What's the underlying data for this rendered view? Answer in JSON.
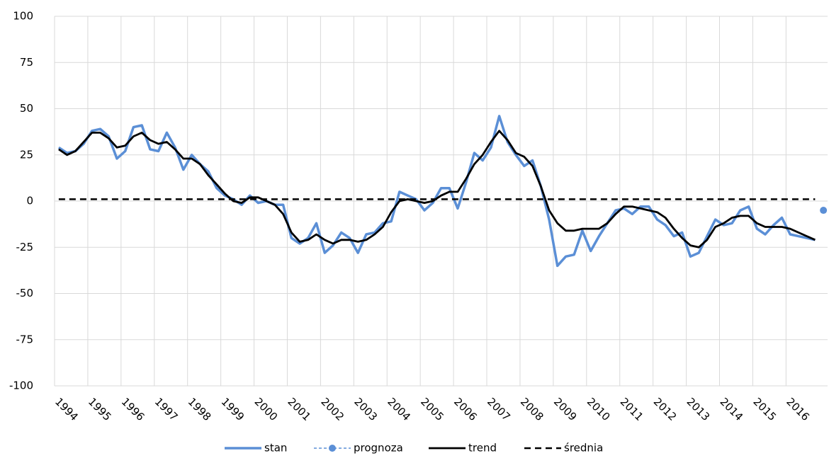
{
  "chart_data": {
    "type": "line",
    "categories": [
      "1994",
      null,
      null,
      null,
      "1995",
      null,
      null,
      null,
      "1996",
      null,
      null,
      null,
      "1997",
      null,
      null,
      null,
      "1998",
      null,
      null,
      null,
      "1999",
      null,
      null,
      null,
      "2000",
      null,
      null,
      null,
      "2001",
      null,
      null,
      null,
      "2002",
      null,
      null,
      null,
      "2003",
      null,
      null,
      null,
      "2004",
      null,
      null,
      null,
      "2005",
      null,
      null,
      null,
      "2006",
      null,
      null,
      null,
      "2007",
      null,
      null,
      null,
      "2008",
      null,
      null,
      null,
      "2009",
      null,
      null,
      null,
      "2010",
      null,
      null,
      null,
      "2011",
      null,
      null,
      null,
      "2012",
      null,
      null,
      null,
      "2013",
      null,
      null,
      null,
      "2014",
      null,
      null,
      null,
      "2015",
      null,
      null,
      null,
      "2016",
      null,
      null,
      null,
      null
    ],
    "series": [
      {
        "name": "stan",
        "color": "#5b8fd6",
        "style": "solid",
        "values": [
          29,
          26,
          27,
          31,
          38,
          39,
          35,
          23,
          27,
          40,
          41,
          28,
          27,
          37,
          29,
          17,
          25,
          20,
          16,
          7,
          3,
          1,
          -2,
          3,
          -1,
          0,
          -2,
          -2,
          -20,
          -23,
          -20,
          -12,
          -28,
          -24,
          -17,
          -20,
          -28,
          -18,
          -17,
          -12,
          -11,
          5,
          3,
          1,
          -5,
          -1,
          7,
          7,
          -4,
          10,
          26,
          22,
          29,
          46,
          32,
          25,
          19,
          22,
          8,
          -10,
          -35,
          -30,
          -29,
          -16,
          -27,
          -19,
          -12,
          -5,
          -4,
          -7,
          -3,
          -3,
          -10,
          -13,
          -19,
          -17,
          -30,
          -28,
          -19,
          -10,
          -13,
          -12,
          -5,
          -3,
          -15,
          -18,
          -13,
          -9,
          -18,
          -19,
          -20,
          -21,
          null
        ]
      },
      {
        "name": "prognoza",
        "color": "#5b8fd6",
        "style": "dashed-marker",
        "values": [
          null,
          null,
          null,
          null,
          null,
          null,
          null,
          null,
          null,
          null,
          null,
          null,
          null,
          null,
          null,
          null,
          null,
          null,
          null,
          null,
          null,
          null,
          null,
          null,
          null,
          null,
          null,
          null,
          null,
          null,
          null,
          null,
          null,
          null,
          null,
          null,
          null,
          null,
          null,
          null,
          null,
          null,
          null,
          null,
          null,
          null,
          null,
          null,
          null,
          null,
          null,
          null,
          null,
          null,
          null,
          null,
          null,
          null,
          null,
          null,
          null,
          null,
          null,
          null,
          null,
          null,
          null,
          null,
          null,
          null,
          null,
          null,
          null,
          null,
          null,
          null,
          null,
          null,
          null,
          null,
          null,
          null,
          null,
          null,
          null,
          null,
          null,
          null,
          null,
          null,
          null,
          null,
          -5
        ]
      },
      {
        "name": "trend",
        "color": "#000000",
        "style": "solid",
        "values": [
          28,
          25,
          27,
          32,
          37,
          37,
          34,
          29,
          30,
          35,
          37,
          33,
          31,
          32,
          28,
          23,
          23,
          20,
          14,
          9,
          4,
          0,
          -1,
          2,
          2,
          0,
          -2,
          -7,
          -17,
          -22,
          -21,
          -18,
          -21,
          -23,
          -21,
          -21,
          -22,
          -21,
          -18,
          -14,
          -6,
          0,
          1,
          0,
          -1,
          0,
          3,
          5,
          5,
          12,
          20,
          25,
          32,
          38,
          33,
          26,
          24,
          19,
          8,
          -5,
          -12,
          -16,
          -16,
          -15,
          -15,
          -15,
          -12,
          -7,
          -3,
          -3,
          -4,
          -5,
          -6,
          -9,
          -15,
          -20,
          -24,
          -25,
          -21,
          -14,
          -12,
          -9,
          -8,
          -8,
          -12,
          -14,
          -14,
          -14,
          -15,
          -17,
          -19,
          -21,
          null
        ]
      },
      {
        "name": "średnia",
        "color": "#000000",
        "style": "dashed",
        "values": [
          1,
          1,
          1,
          1,
          1,
          1,
          1,
          1,
          1,
          1,
          1,
          1,
          1,
          1,
          1,
          1,
          1,
          1,
          1,
          1,
          1,
          1,
          1,
          1,
          1,
          1,
          1,
          1,
          1,
          1,
          1,
          1,
          1,
          1,
          1,
          1,
          1,
          1,
          1,
          1,
          1,
          1,
          1,
          1,
          1,
          1,
          1,
          1,
          1,
          1,
          1,
          1,
          1,
          1,
          1,
          1,
          1,
          1,
          1,
          1,
          1,
          1,
          1,
          1,
          1,
          1,
          1,
          1,
          1,
          1,
          1,
          1,
          1,
          1,
          1,
          1,
          1,
          1,
          1,
          1,
          1,
          1,
          1,
          1,
          1,
          1,
          1,
          1,
          1,
          1,
          1,
          1,
          null
        ]
      }
    ],
    "ylim": [
      -100,
      100
    ],
    "yticks": [
      -100,
      -75,
      -50,
      -25,
      0,
      25,
      50,
      75,
      100
    ],
    "grid": true,
    "legend": "bottom"
  }
}
